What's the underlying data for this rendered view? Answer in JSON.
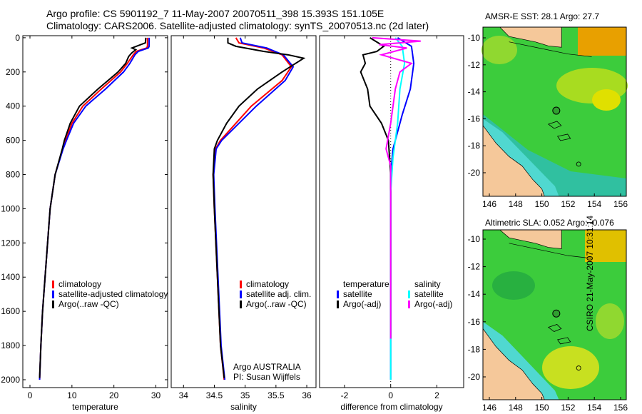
{
  "title_line1": "Argo profile: CS 5901192_7 11-May-2007 20070511_398 15.393S 151.105E",
  "title_line2": "Climatology: CARS2006. Satellite-adjusted climatology: synTS_20070513.nc (2d later)",
  "credit": "CSIRO 21-May-2007 10:31:14",
  "colors": {
    "red": "#ff0000",
    "blue": "#0000ff",
    "black": "#000000",
    "cyan": "#00ffff",
    "magenta": "#ff00ff"
  },
  "chart_data": [
    {
      "type": "line",
      "xlabel": "temperature",
      "ylabel": "",
      "xlim": [
        -1.7,
        32.8
      ],
      "ylim": [
        2046,
        -12
      ],
      "xticks": [
        0,
        10,
        20,
        30
      ],
      "yticks": [
        0,
        200,
        400,
        600,
        800,
        1000,
        1200,
        1400,
        1600,
        1800,
        2000
      ],
      "legend": {
        "placement": "lower-right",
        "entries": [
          "climatology",
          "satellite-adjusted climatology",
          "Argo(..raw -QC)"
        ]
      },
      "series": [
        {
          "name": "climatology",
          "color": "#ff0000",
          "points": [
            [
              28,
              0
            ],
            [
              28,
              50
            ],
            [
              27.8,
              60
            ],
            [
              25.3,
              80
            ],
            [
              24.6,
              100
            ],
            [
              23.2,
              150
            ],
            [
              21.6,
              200
            ],
            [
              17,
              300
            ],
            [
              12.6,
              400
            ],
            [
              10,
              500
            ],
            [
              8.5,
              600
            ],
            [
              7.8,
              650
            ],
            [
              6,
              800
            ],
            [
              4.8,
              1000
            ],
            [
              4.2,
              1200
            ],
            [
              3.6,
              1400
            ],
            [
              3.0,
              1600
            ],
            [
              2.6,
              1800
            ],
            [
              2.3,
              2000
            ]
          ]
        },
        {
          "name": "satellite-adjusted climatology",
          "color": "#0000ff",
          "points": [
            [
              28.4,
              0
            ],
            [
              28.4,
              50
            ],
            [
              28.2,
              60
            ],
            [
              25.8,
              80
            ],
            [
              25,
              100
            ],
            [
              23.8,
              150
            ],
            [
              22.3,
              200
            ],
            [
              18,
              300
            ],
            [
              13.3,
              400
            ],
            [
              10.4,
              500
            ],
            [
              8.7,
              600
            ],
            [
              7.9,
              650
            ],
            [
              6,
              800
            ],
            [
              4.8,
              1000
            ],
            [
              4.2,
              1200
            ],
            [
              3.6,
              1400
            ],
            [
              3.0,
              1600
            ],
            [
              2.6,
              1800
            ],
            [
              2.3,
              2000
            ]
          ]
        },
        {
          "name": "Argo(..raw -QC)",
          "color": "#000000",
          "points": [
            [
              27.6,
              0
            ],
            [
              27.5,
              30
            ],
            [
              24.3,
              60
            ],
            [
              25.2,
              70
            ],
            [
              24.2,
              90
            ],
            [
              23.5,
              110
            ],
            [
              22.8,
              150
            ],
            [
              21,
              200
            ],
            [
              16.2,
              300
            ],
            [
              11.8,
              400
            ],
            [
              9.6,
              500
            ],
            [
              8.2,
              600
            ],
            [
              7.7,
              650
            ],
            [
              6,
              800
            ],
            [
              4.8,
              1000
            ],
            [
              4.2,
              1200
            ],
            [
              3.6,
              1400
            ],
            [
              3.0,
              1600
            ],
            [
              2.6,
              1800
            ],
            [
              2.3,
              1990
            ]
          ]
        }
      ]
    },
    {
      "type": "line",
      "xlabel": "salinity",
      "ylabel": "",
      "xlim": [
        33.8,
        36.15
      ],
      "ylim": [
        2046,
        -12
      ],
      "xticks": [
        34,
        34.5,
        35,
        35.5,
        36
      ],
      "yticks": [],
      "legend": {
        "placement": "lower-right",
        "entries": [
          "climatology",
          "satellite adj. clim.",
          "Argo(..raw -QC)"
        ]
      },
      "annotation": [
        "Argo AUSTRALIA",
        "PI: Susan Wijffels"
      ],
      "series": [
        {
          "name": "climatology",
          "color": "#ff0000",
          "points": [
            [
              34.85,
              0
            ],
            [
              34.9,
              30
            ],
            [
              35.3,
              60
            ],
            [
              35.6,
              100
            ],
            [
              35.75,
              170
            ],
            [
              35.6,
              250
            ],
            [
              35.1,
              400
            ],
            [
              34.85,
              500
            ],
            [
              34.6,
              600
            ],
            [
              34.52,
              650
            ],
            [
              34.48,
              800
            ],
            [
              34.5,
              1000
            ],
            [
              34.55,
              1400
            ],
            [
              34.6,
              1800
            ],
            [
              34.66,
              2000
            ]
          ]
        },
        {
          "name": "satellite adj. clim.",
          "color": "#0000ff",
          "points": [
            [
              34.92,
              0
            ],
            [
              34.95,
              30
            ],
            [
              35.35,
              60
            ],
            [
              35.62,
              100
            ],
            [
              35.78,
              170
            ],
            [
              35.65,
              250
            ],
            [
              35.18,
              400
            ],
            [
              34.9,
              500
            ],
            [
              34.62,
              600
            ],
            [
              34.53,
              650
            ],
            [
              34.49,
              800
            ],
            [
              34.51,
              1000
            ],
            [
              34.56,
              1400
            ],
            [
              34.61,
              1800
            ],
            [
              34.67,
              2000
            ]
          ]
        },
        {
          "name": "Argo(..raw -QC)",
          "color": "#000000",
          "points": [
            [
              34.72,
              0
            ],
            [
              34.72,
              30
            ],
            [
              34.85,
              50
            ],
            [
              35.3,
              80
            ],
            [
              35.7,
              100
            ],
            [
              35.95,
              120
            ],
            [
              35.6,
              200
            ],
            [
              35.2,
              300
            ],
            [
              34.9,
              400
            ],
            [
              34.7,
              500
            ],
            [
              34.55,
              600
            ],
            [
              34.5,
              650
            ],
            [
              34.48,
              800
            ],
            [
              34.5,
              1000
            ],
            [
              34.55,
              1400
            ],
            [
              34.6,
              1800
            ],
            [
              34.66,
              1990
            ]
          ]
        }
      ]
    },
    {
      "type": "line",
      "xlabel": "difference from climatology",
      "ylabel": "",
      "xlim": [
        -3.08,
        3.16
      ],
      "ylim": [
        2046,
        -12
      ],
      "xticks": [
        -2,
        0,
        2
      ],
      "yticks": [],
      "legend": {
        "placement": "center",
        "entries": [
          "temperature",
          "satellite",
          "Argo(-adj)",
          "salinity",
          "satellite",
          "Argo(-adj)"
        ]
      },
      "series": [
        {
          "name": "temperature satellite",
          "color": "#0000ff",
          "points": [
            [
              0.3,
              0
            ],
            [
              0.9,
              50
            ],
            [
              1.0,
              150
            ],
            [
              0.85,
              300
            ],
            [
              0.5,
              450
            ],
            [
              0.1,
              650
            ],
            [
              0,
              800
            ],
            [
              0,
              2000
            ]
          ]
        },
        {
          "name": "temperature Argo(-adj)",
          "color": "#000000",
          "points": [
            [
              -0.9,
              0
            ],
            [
              -0.3,
              50
            ],
            [
              -0.6,
              80
            ],
            [
              -1.2,
              100
            ],
            [
              -1.1,
              150
            ],
            [
              -1.3,
              200
            ],
            [
              -1.0,
              300
            ],
            [
              -0.9,
              400
            ],
            [
              -0.4,
              500
            ],
            [
              -0.1,
              600
            ],
            [
              0,
              800
            ],
            [
              0,
              1760
            ]
          ]
        },
        {
          "name": "salinity satellite",
          "color": "#00ffff",
          "points": [
            [
              0.2,
              0
            ],
            [
              0.5,
              50
            ],
            [
              0.6,
              150
            ],
            [
              0.4,
              300
            ],
            [
              0.3,
              500
            ],
            [
              0.1,
              700
            ],
            [
              0,
              900
            ],
            [
              0,
              2000
            ]
          ]
        },
        {
          "name": "salinity Argo(-adj)",
          "color": "#ff00ff",
          "points": [
            [
              -0.8,
              0
            ],
            [
              1.3,
              20
            ],
            [
              -0.5,
              40
            ],
            [
              0.7,
              60
            ],
            [
              -0.4,
              100
            ],
            [
              0.9,
              150
            ],
            [
              0.4,
              200
            ],
            [
              0.2,
              300
            ],
            [
              0,
              500
            ],
            [
              -0.2,
              650
            ],
            [
              0,
              750
            ],
            [
              0,
              1760
            ]
          ]
        }
      ]
    }
  ],
  "maps": [
    {
      "title": "AMSR-E SST: 28.1  Argo: 27.7",
      "lon_ticks": [
        146,
        148,
        150,
        152,
        154,
        156
      ],
      "lat_ticks": [
        -10,
        -12,
        -14,
        -16,
        -18,
        -20
      ],
      "float_lon": 151.1,
      "float_lat": -15.4
    },
    {
      "title": "Altimetric SLA: 0.052  Argo: -0.076",
      "lon_ticks": [
        146,
        148,
        150,
        152,
        154,
        156
      ],
      "lat_ticks": [
        -10,
        -12,
        -14,
        -16,
        -18,
        -20
      ],
      "float_lon": 151.1,
      "float_lat": -15.4
    }
  ]
}
